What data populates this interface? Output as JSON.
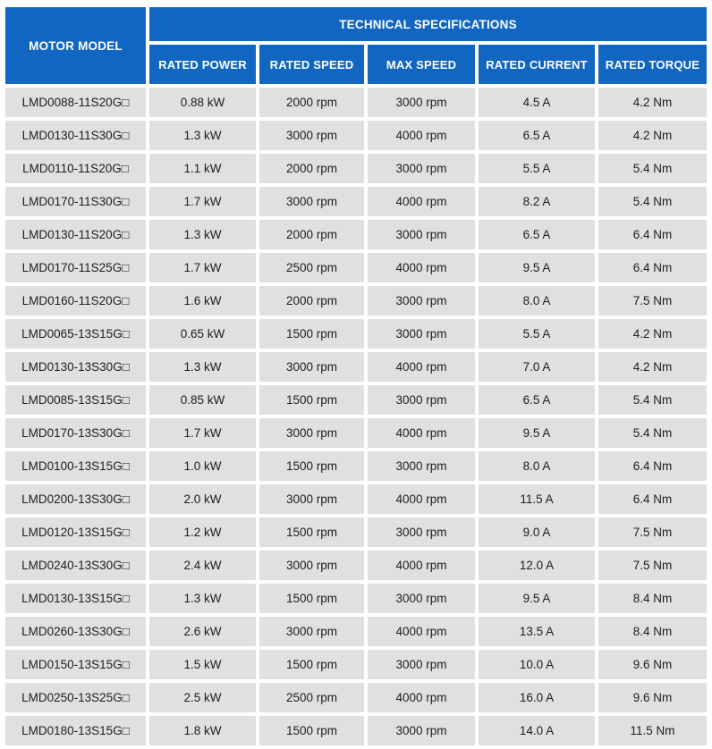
{
  "colors": {
    "header_blue": "#1166c2",
    "cell_gray": "#e0e0e0",
    "header_text": "#ffffff",
    "cell_text": "#1d1d1d",
    "page_background": "#ffffff"
  },
  "table": {
    "header": {
      "motor_model": "MOTOR MODEL",
      "tech_specs": "TECHNICAL SPECIFICATIONS",
      "columns": [
        "RATED POWER",
        "RATED SPEED",
        "MAX SPEED",
        "RATED CURRENT",
        "RATED TORQUE"
      ]
    },
    "rows": [
      {
        "model": "LMD0088-11S20G□",
        "power": "0.88 kW",
        "speed": "2000 rpm",
        "max_speed": "3000 rpm",
        "current": "4.5 A",
        "torque": "4.2 Nm"
      },
      {
        "model": "LMD0130-11S30G□",
        "power": "1.3 kW",
        "speed": "3000 rpm",
        "max_speed": "4000 rpm",
        "current": "6.5 A",
        "torque": "4.2 Nm"
      },
      {
        "model": "LMD0110-11S20G□",
        "power": "1.1 kW",
        "speed": "2000 rpm",
        "max_speed": "3000 rpm",
        "current": "5.5 A",
        "torque": "5.4 Nm"
      },
      {
        "model": "LMD0170-11S30G□",
        "power": "1.7 kW",
        "speed": "3000 rpm",
        "max_speed": "4000 rpm",
        "current": "8.2 A",
        "torque": "5.4 Nm"
      },
      {
        "model": "LMD0130-11S20G□",
        "power": "1.3 kW",
        "speed": "2000 rpm",
        "max_speed": "3000 rpm",
        "current": "6.5 A",
        "torque": "6.4 Nm"
      },
      {
        "model": "LMD0170-11S25G□",
        "power": "1.7 kW",
        "speed": "2500 rpm",
        "max_speed": "4000 rpm",
        "current": "9.5 A",
        "torque": "6.4 Nm"
      },
      {
        "model": "LMD0160-11S20G□",
        "power": "1.6 kW",
        "speed": "2000 rpm",
        "max_speed": "3000 rpm",
        "current": "8.0 A",
        "torque": "7.5 Nm"
      },
      {
        "model": "LMD0065-13S15G□",
        "power": "0.65 kW",
        "speed": "1500 rpm",
        "max_speed": "3000 rpm",
        "current": "5.5 A",
        "torque": "4.2 Nm"
      },
      {
        "model": "LMD0130-13S30G□",
        "power": "1.3 kW",
        "speed": "3000 rpm",
        "max_speed": "4000 rpm",
        "current": "7.0 A",
        "torque": "4.2 Nm"
      },
      {
        "model": "LMD0085-13S15G□",
        "power": "0.85 kW",
        "speed": "1500 rpm",
        "max_speed": "3000 rpm",
        "current": "6.5 A",
        "torque": "5.4 Nm"
      },
      {
        "model": "LMD0170-13S30G□",
        "power": "1.7 kW",
        "speed": "3000 rpm",
        "max_speed": "4000 rpm",
        "current": "9.5 A",
        "torque": "5.4 Nm"
      },
      {
        "model": "LMD0100-13S15G□",
        "power": "1.0 kW",
        "speed": "1500 rpm",
        "max_speed": "3000 rpm",
        "current": "8.0 A",
        "torque": "6.4 Nm"
      },
      {
        "model": "LMD0200-13S30G□",
        "power": "2.0 kW",
        "speed": "3000 rpm",
        "max_speed": "4000 rpm",
        "current": "11.5 A",
        "torque": "6.4 Nm"
      },
      {
        "model": "LMD0120-13S15G□",
        "power": "1.2 kW",
        "speed": "1500 rpm",
        "max_speed": "3000 rpm",
        "current": "9.0 A",
        "torque": "7.5 Nm"
      },
      {
        "model": "LMD0240-13S30G□",
        "power": "2.4 kW",
        "speed": "3000 rpm",
        "max_speed": "4000 rpm",
        "current": "12.0 A",
        "torque": "7.5 Nm"
      },
      {
        "model": "LMD0130-13S15G□",
        "power": "1.3 kW",
        "speed": "1500 rpm",
        "max_speed": "3000 rpm",
        "current": "9.5 A",
        "torque": "8.4 Nm"
      },
      {
        "model": "LMD0260-13S30G□",
        "power": "2.6 kW",
        "speed": "3000 rpm",
        "max_speed": "4000 rpm",
        "current": "13.5 A",
        "torque": "8.4 Nm"
      },
      {
        "model": "LMD0150-13S15G□",
        "power": "1.5 kW",
        "speed": "1500 rpm",
        "max_speed": "3000 rpm",
        "current": "10.0 A",
        "torque": "9.6 Nm"
      },
      {
        "model": "LMD0250-13S25G□",
        "power": "2.5 kW",
        "speed": "2500 rpm",
        "max_speed": "4000 rpm",
        "current": "16.0 A",
        "torque": "9.6 Nm"
      },
      {
        "model": "LMD0180-13S15G□",
        "power": "1.8 kW",
        "speed": "1500 rpm",
        "max_speed": "3000 rpm",
        "current": "14.0 A",
        "torque": "11.5 Nm"
      }
    ]
  }
}
